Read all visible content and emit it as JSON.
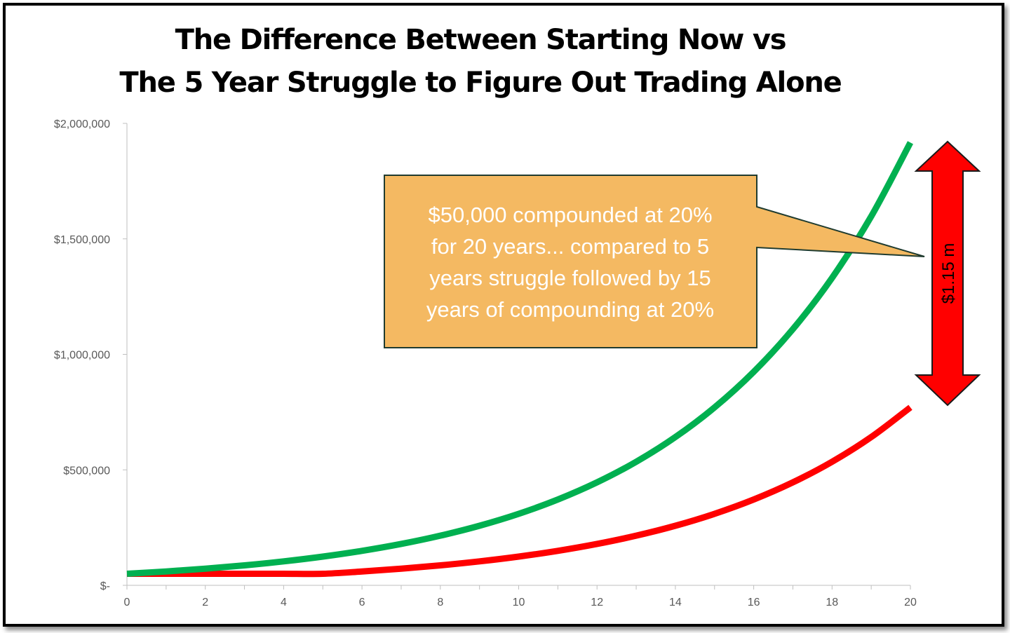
{
  "title_lines": [
    "The Difference Between Starting Now vs",
    "The 5 Year Struggle to Figure Out Trading Alone"
  ],
  "callout": {
    "lines": [
      "$50,000 compounded at 20%",
      "for 20 years... compared to 5",
      "years struggle followed by 15",
      "years of compounding at 20%"
    ],
    "fill": "#F4B962",
    "border": "#1F3B2F"
  },
  "difference_arrow": {
    "label": "$1.15 m",
    "color": "#FF0000",
    "top_value": 1950000,
    "bottom_value": 780000
  },
  "chart_data": {
    "type": "line",
    "title": "The Difference Between Starting Now vs The 5 Year Struggle to Figure Out Trading Alone",
    "xlabel": "",
    "ylabel": "",
    "xlim": [
      0,
      20
    ],
    "ylim": [
      0,
      2000000
    ],
    "x_ticks": [
      0,
      2,
      4,
      6,
      8,
      10,
      12,
      14,
      16,
      18,
      20
    ],
    "y_ticks": [
      {
        "value": 0,
        "label": "$-"
      },
      {
        "value": 500000,
        "label": "$500,000"
      },
      {
        "value": 1000000,
        "label": "$1,000,000"
      },
      {
        "value": 1500000,
        "label": "$1,500,000"
      },
      {
        "value": 2000000,
        "label": "$2,000,000"
      }
    ],
    "grid": false,
    "legend": "none",
    "x": [
      0,
      1,
      2,
      3,
      4,
      5,
      6,
      7,
      8,
      9,
      10,
      11,
      12,
      13,
      14,
      15,
      16,
      17,
      18,
      19,
      20
    ],
    "series": [
      {
        "color": "#00B050",
        "values": [
          50000,
          60000,
          72000,
          86400,
          103680,
          124416,
          149299,
          179159,
          214991,
          257989,
          309587,
          371504,
          445805,
          534966,
          641959,
          770351,
          924421,
          1109306,
          1331167,
          1597400,
          1916880
        ]
      },
      {
        "color": "#FF0000",
        "values": [
          50000,
          50000,
          50000,
          50000,
          50000,
          50000,
          60000,
          72000,
          86400,
          103680,
          124416,
          149299,
          179159,
          214991,
          257989,
          309587,
          371504,
          445805,
          534966,
          641959,
          770351
        ]
      }
    ]
  }
}
